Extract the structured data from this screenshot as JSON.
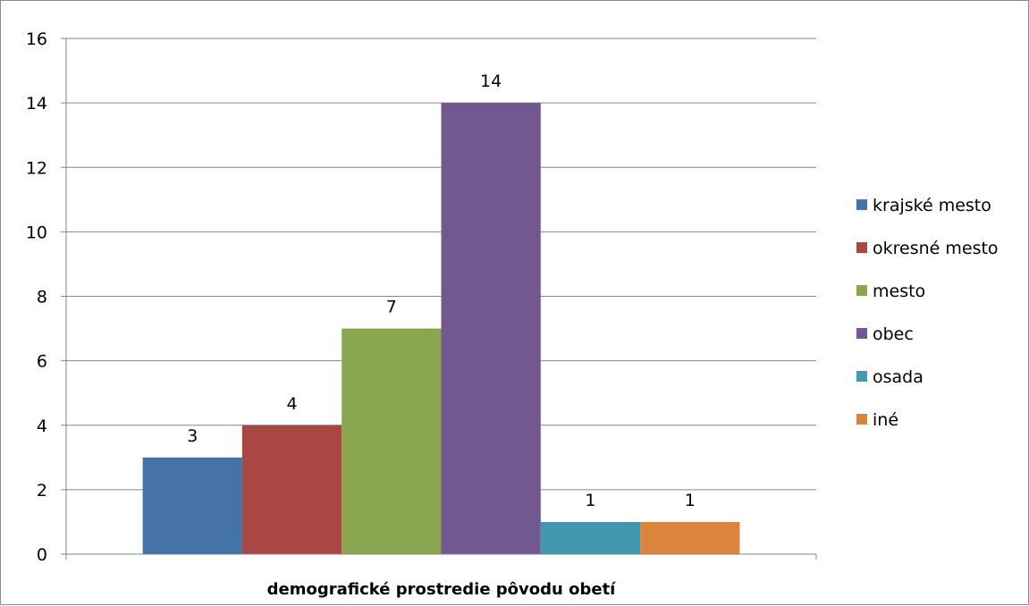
{
  "chart_data": {
    "type": "bar",
    "title": "",
    "xlabel": "demografické prostredie pôvodu obetí",
    "ylabel": "",
    "ylim": [
      0,
      16
    ],
    "y_ticks": [
      0,
      2,
      4,
      6,
      8,
      10,
      12,
      14,
      16
    ],
    "y_tick_labels": [
      "0",
      "2",
      "4",
      "6",
      "8",
      "10",
      "12",
      "14",
      "16"
    ],
    "grid": true,
    "legend_position": "right",
    "series": [
      {
        "name": "krajské mesto",
        "values": [
          3
        ],
        "color": "#4572a7",
        "label": "3"
      },
      {
        "name": "okresné mesto",
        "values": [
          4
        ],
        "color": "#aa4643",
        "label": "4"
      },
      {
        "name": "mesto",
        "values": [
          7
        ],
        "color": "#89a54e",
        "label": "7"
      },
      {
        "name": "obec",
        "values": [
          14
        ],
        "color": "#71588f",
        "label": "14"
      },
      {
        "name": "osada",
        "values": [
          1
        ],
        "color": "#4198af",
        "label": "1"
      },
      {
        "name": "iné",
        "values": [
          1
        ],
        "color": "#db843d",
        "label": "1"
      }
    ]
  }
}
